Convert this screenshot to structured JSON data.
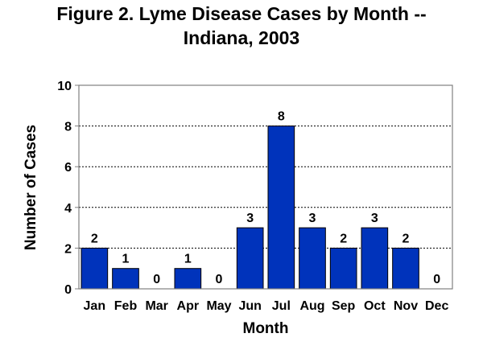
{
  "chart_data": {
    "type": "bar",
    "title": "Figure 2. Lyme Disease Cases by Month --\nIndiana, 2003",
    "xlabel": "Month",
    "ylabel": "Number of Cases",
    "categories": [
      "Jan",
      "Feb",
      "Mar",
      "Apr",
      "May",
      "Jun",
      "Jul",
      "Aug",
      "Sep",
      "Oct",
      "Nov",
      "Dec"
    ],
    "values": [
      2,
      1,
      0,
      1,
      0,
      3,
      8,
      3,
      2,
      3,
      2,
      0
    ],
    "ylim": [
      0,
      10
    ],
    "yticks": [
      0,
      2,
      4,
      6,
      8,
      10
    ],
    "grid": true,
    "legend": "none",
    "bar_color": "#0033BB"
  }
}
